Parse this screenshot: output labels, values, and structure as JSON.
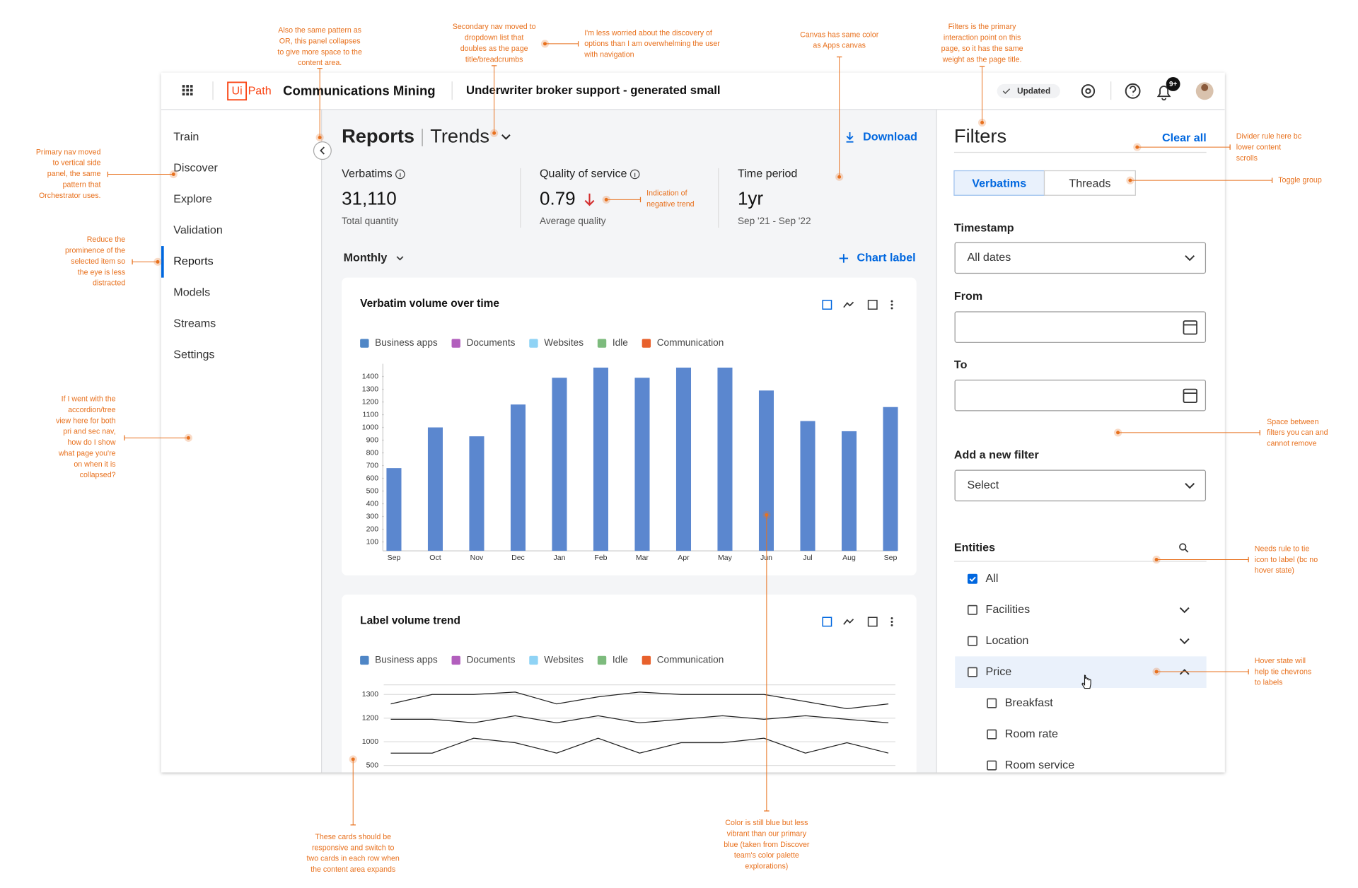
{
  "header": {
    "logo_ui": "Ui",
    "logo_path": "Path",
    "product": "Communications Mining",
    "dataset": "Underwriter broker support - generated small",
    "status": "Updated",
    "notifications": "9+"
  },
  "nav": {
    "items": [
      "Train",
      "Discover",
      "Explore",
      "Validation",
      "Reports",
      "Models",
      "Streams",
      "Settings"
    ],
    "selected": 4
  },
  "page": {
    "title": "Reports",
    "view": "Trends",
    "download": "Download",
    "period": "Monthly",
    "chart_label": "Chart label"
  },
  "metrics": [
    {
      "label": "Verbatims",
      "value": "31,110",
      "caption": "Total quantity"
    },
    {
      "label": "Quality of service",
      "value": 0.79,
      "caption": "Average quality",
      "trend": "down"
    },
    {
      "label": "Time period",
      "value": "1yr",
      "caption": "Sep '21 - Sep '22"
    }
  ],
  "chart_data": [
    {
      "type": "bar",
      "title": "Verbatim volume over time",
      "legend": [
        {
          "name": "Business apps",
          "color": "#4f86c6"
        },
        {
          "name": "Documents",
          "color": "#b25fbd"
        },
        {
          "name": "Websites",
          "color": "#8fd3f5"
        },
        {
          "name": "Idle",
          "color": "#7dbb7d"
        },
        {
          "name": "Communication",
          "color": "#e8612c"
        }
      ],
      "categories": [
        "Sep",
        "Oct",
        "Nov",
        "Dec",
        "Jan",
        "Feb",
        "Mar",
        "Apr",
        "May",
        "Jun",
        "Jul",
        "Aug",
        "Sep"
      ],
      "values": [
        680,
        1000,
        930,
        1180,
        1390,
        1470,
        1390,
        1470,
        1470,
        1290,
        1050,
        970,
        1160
      ],
      "color": "#5b87cf",
      "ylim": [
        30,
        1500
      ],
      "yticks": [
        100,
        200,
        300,
        400,
        500,
        600,
        700,
        800,
        900,
        1000,
        1100,
        1200,
        1300,
        1400
      ]
    },
    {
      "type": "line",
      "title": "Label volume trend",
      "legend": [
        {
          "name": "Business apps",
          "color": "#4f86c6"
        },
        {
          "name": "Documents",
          "color": "#b25fbd"
        },
        {
          "name": "Websites",
          "color": "#8fd3f5"
        },
        {
          "name": "Idle",
          "color": "#7dbb7d"
        },
        {
          "name": "Communication",
          "color": "#e8612c"
        }
      ],
      "yticks": [
        500,
        1000,
        1200,
        1300
      ],
      "grid": true,
      "series": [
        {
          "color": "#222",
          "values": [
            1260,
            1300,
            1300,
            1310,
            1260,
            1290,
            1310,
            1300,
            1300,
            1300,
            1270,
            1240,
            1260
          ]
        },
        {
          "color": "#222",
          "values": [
            1190,
            1190,
            1160,
            1210,
            1160,
            1210,
            1160,
            1190,
            1210,
            1190,
            1210,
            1190,
            1160
          ]
        },
        {
          "color": "#222",
          "values": [
            760,
            760,
            1030,
            980,
            760,
            1030,
            760,
            980,
            980,
            1030,
            760,
            980,
            760
          ]
        }
      ]
    }
  ],
  "filters": {
    "title": "Filters",
    "clear": "Clear all",
    "toggle": {
      "options": [
        "Verbatims",
        "Threads"
      ],
      "selected": 0
    },
    "fields": [
      {
        "label": "Timestamp",
        "value": "All dates"
      },
      {
        "label": "From"
      },
      {
        "label": "To"
      },
      {
        "label": "Add a new filter",
        "value": "Select"
      }
    ],
    "entities": {
      "title": "Entities",
      "items": [
        {
          "label": "All",
          "checked": true
        },
        {
          "label": "Facilities",
          "expandable": true
        },
        {
          "label": "Location",
          "expandable": true
        },
        {
          "label": "Price",
          "expanded": true,
          "hover": true
        },
        {
          "label": "Breakfast",
          "child": true
        },
        {
          "label": "Room rate",
          "child": true
        },
        {
          "label": "Room service",
          "child": true
        }
      ]
    }
  },
  "annotations": [
    {
      "lines": [
        "Also the same pattern as",
        "OR, this panel collapses",
        "to give more space to the",
        "content area."
      ]
    },
    {
      "lines": [
        "Secondary nav moved to",
        "dropdown list that",
        "doubles as the page",
        "title/breadcrumbs"
      ]
    },
    {
      "lines": [
        "I'm less worried about the discovery of",
        "options than I am overwhelming the user",
        "with navigation"
      ]
    },
    {
      "lines": [
        "Canvas has same color",
        "as Apps canvas"
      ]
    },
    {
      "lines": [
        "Filters is the primary",
        "interaction point on this",
        "page, so it has the same",
        "weight as the page title."
      ]
    },
    {
      "lines": [
        "Primary nav moved",
        "to vertical side",
        "panel, the same",
        "pattern that",
        "Orchestrator uses."
      ]
    },
    {
      "lines": [
        "Reduce the",
        "prominence of the",
        "selected item so",
        "the eye is less",
        "distracted"
      ]
    },
    {
      "lines": [
        "If I went with the",
        "accordion/tree",
        "view here for both",
        "pri and sec nav,",
        "how do I show",
        "what page you're",
        "on when it is",
        "collapsed?"
      ]
    },
    {
      "lines": [
        "Indication of",
        "negative trend"
      ]
    },
    {
      "lines": [
        "Divider rule here bc",
        "lower content",
        "scrolls"
      ]
    },
    {
      "lines": [
        "Toggle group"
      ]
    },
    {
      "lines": [
        "Space between",
        "filters you can and",
        "cannot remove"
      ]
    },
    {
      "lines": [
        "Needs rule to tie",
        "icon to label (bc no",
        "hover state)"
      ]
    },
    {
      "lines": [
        "Hover state will",
        "help tie chevrons",
        "to labels"
      ]
    },
    {
      "lines": [
        "These cards should be",
        "responsive and switch to",
        "two cards in each row when",
        "the content area expands"
      ]
    },
    {
      "lines": [
        "Color is still blue but less",
        "vibrant than our primary",
        "blue (taken from Discover",
        "team's color palette",
        "explorations)"
      ]
    }
  ]
}
